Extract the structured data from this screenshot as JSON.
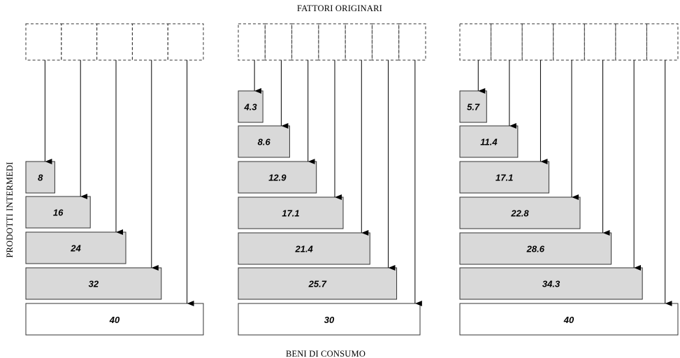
{
  "labels": {
    "top": "FATTORI ORIGINARI",
    "bottom": "BENI DI CONSUMO",
    "left": "PRODOTTI INTERMEDI"
  },
  "colors": {
    "intermediate_fill": "#d9d9d9",
    "consumption_fill": "#ffffff",
    "stroke": "#333333"
  },
  "panels": [
    {
      "factors": 5,
      "intermediate": [
        "8",
        "16",
        "24",
        "32"
      ],
      "consumption": "40"
    },
    {
      "factors": 7,
      "intermediate": [
        "4.3",
        "8.6",
        "12.9",
        "17.1",
        "21.4",
        "25.7"
      ],
      "consumption": "30"
    },
    {
      "factors": 7,
      "intermediate": [
        "5.7",
        "11.4",
        "17.1",
        "22.8",
        "28.6",
        "34.3"
      ],
      "consumption": "40"
    }
  ]
}
